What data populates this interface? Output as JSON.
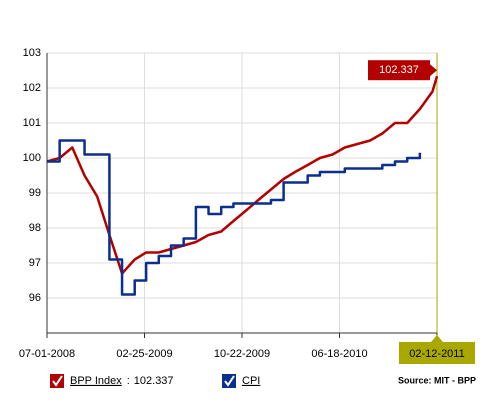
{
  "chart_data": {
    "type": "line",
    "x": [
      "07-01-2008",
      "08-01-2008",
      "09-01-2008",
      "10-01-2008",
      "11-01-2008",
      "12-01-2008",
      "01-01-2009",
      "02-01-2009",
      "03-01-2009",
      "04-01-2009",
      "05-01-2009",
      "06-01-2009",
      "07-01-2009",
      "08-01-2009",
      "09-01-2009",
      "10-01-2009",
      "11-01-2009",
      "12-01-2009",
      "01-01-2010",
      "02-01-2010",
      "03-01-2010",
      "04-01-2010",
      "05-01-2010",
      "06-01-2010",
      "07-01-2010",
      "08-01-2010",
      "09-01-2010",
      "10-01-2010",
      "11-01-2010",
      "12-01-2010",
      "01-01-2011",
      "02-01-2011",
      "02-12-2011"
    ],
    "series": [
      {
        "name": "BPP Index",
        "color": "#b30000",
        "step": false,
        "values": [
          99.9,
          100.0,
          100.3,
          99.5,
          98.9,
          97.8,
          96.7,
          97.1,
          97.3,
          97.3,
          97.4,
          97.5,
          97.6,
          97.8,
          97.9,
          98.2,
          98.5,
          98.8,
          99.1,
          99.4,
          99.6,
          99.8,
          100.0,
          100.1,
          100.3,
          100.4,
          100.5,
          100.7,
          101.0,
          101.0,
          101.4,
          101.9,
          102.337
        ]
      },
      {
        "name": "CPI",
        "color": "#0a2f8f",
        "step": true,
        "values": [
          99.9,
          100.5,
          100.5,
          100.1,
          100.1,
          97.1,
          96.1,
          96.5,
          97.0,
          97.2,
          97.5,
          97.7,
          98.6,
          98.4,
          98.6,
          98.7,
          98.7,
          98.7,
          98.8,
          99.3,
          99.3,
          99.5,
          99.6,
          99.6,
          99.7,
          99.7,
          99.7,
          99.8,
          99.9,
          100.0,
          100.15,
          null,
          null
        ]
      }
    ],
    "xlim": [
      "07-01-2008",
      "02-12-2011"
    ],
    "xticks": [
      "07-01-2008",
      "02-25-2009",
      "10-22-2009",
      "06-18-2010",
      "02-12-2011"
    ],
    "ylim": [
      95,
      103
    ],
    "yticks": [
      96,
      97,
      98,
      99,
      100,
      101,
      102,
      103
    ],
    "grid": true,
    "highlight_color": "#a8a800",
    "legend_separator": ":",
    "source": "Source: MIT - BPP"
  }
}
